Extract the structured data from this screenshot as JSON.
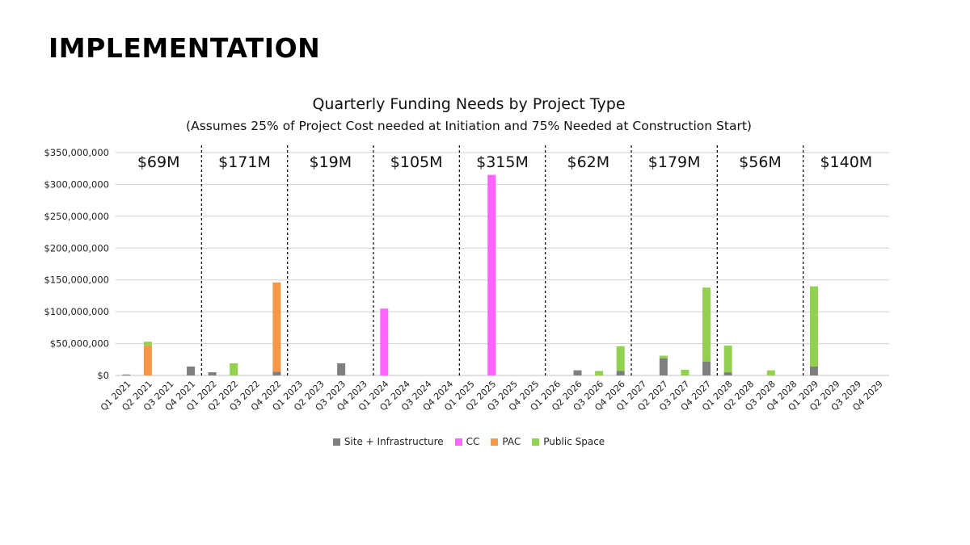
{
  "slide": {
    "title": "IMPLEMENTATION"
  },
  "colors": {
    "site": "#7f7f7f",
    "cc": "#ff66ff",
    "pac": "#f79646",
    "public": "#92d050"
  },
  "chart_data": {
    "type": "bar",
    "stacked": true,
    "title": "Quarterly Funding Needs by Project Type",
    "subtitle": "(Assumes 25% of Project Cost needed at Initiation and 75% Needed at Construction Start)",
    "ylim": [
      0,
      350000000
    ],
    "yticks": [
      "$0",
      "$50,000,000",
      "$100,000,000",
      "$150,000,000",
      "$200,000,000",
      "$250,000,000",
      "$300,000,000",
      "$350,000,000"
    ],
    "grid": true,
    "legend_position": "bottom",
    "categories": [
      "Q1 2021",
      "Q2 2021",
      "Q3 2021",
      "Q4 2021",
      "Q1 2022",
      "Q2 2022",
      "Q3 2022",
      "Q4 2022",
      "Q1 2023",
      "Q2 2023",
      "Q3 2023",
      "Q4 2023",
      "Q1 2024",
      "Q2 2024",
      "Q3 2024",
      "Q4 2024",
      "Q1 2025",
      "Q2 2025",
      "Q3 2025",
      "Q4 2025",
      "Q1 2026",
      "Q2 2026",
      "Q3 2026",
      "Q4 2026",
      "Q1 2027",
      "Q2 2027",
      "Q3 2027",
      "Q4 2027",
      "Q1 2028",
      "Q2 2028",
      "Q3 2028",
      "Q4 2028",
      "Q1 2029",
      "Q2 2029",
      "Q3 2029",
      "Q4 2029"
    ],
    "series": [
      {
        "name": "Site + Infrastructure",
        "color": "#7f7f7f",
        "values": [
          1500000,
          0,
          0,
          14000000,
          5000000,
          0,
          0,
          6000000,
          0,
          0,
          19000000,
          0,
          0,
          0,
          0,
          0,
          0,
          0,
          0,
          0,
          0,
          8000000,
          0,
          7000000,
          0,
          27000000,
          0,
          22000000,
          5000000,
          0,
          0,
          0,
          14000000,
          0,
          0,
          0
        ]
      },
      {
        "name": "CC",
        "color": "#ff66ff",
        "values": [
          0,
          0,
          0,
          0,
          0,
          0,
          0,
          0,
          0,
          0,
          0,
          0,
          105000000,
          0,
          0,
          0,
          0,
          315000000,
          0,
          0,
          0,
          0,
          0,
          0,
          0,
          0,
          0,
          0,
          0,
          0,
          0,
          0,
          0,
          0,
          0,
          0
        ]
      },
      {
        "name": "PAC",
        "color": "#f79646",
        "values": [
          0,
          47000000,
          0,
          0,
          0,
          0,
          0,
          140000000,
          0,
          0,
          0,
          0,
          0,
          0,
          0,
          0,
          0,
          0,
          0,
          0,
          0,
          0,
          0,
          0,
          0,
          0,
          0,
          0,
          0,
          0,
          0,
          0,
          0,
          0,
          0,
          0
        ]
      },
      {
        "name": "Public Space",
        "color": "#92d050",
        "values": [
          0,
          6000000,
          0,
          0,
          0,
          19000000,
          0,
          0,
          0,
          0,
          0,
          0,
          0,
          0,
          0,
          0,
          0,
          0,
          0,
          0,
          0,
          0,
          7000000,
          39000000,
          0,
          4000000,
          9000000,
          116000000,
          42000000,
          0,
          8000000,
          0,
          126000000,
          0,
          0,
          0
        ]
      }
    ],
    "period_totals": [
      {
        "label": "$69M",
        "from_index": 0,
        "to_index": 3
      },
      {
        "label": "$171M",
        "from_index": 4,
        "to_index": 7
      },
      {
        "label": "$19M",
        "from_index": 8,
        "to_index": 11
      },
      {
        "label": "$105M",
        "from_index": 12,
        "to_index": 15
      },
      {
        "label": "$315M",
        "from_index": 16,
        "to_index": 19
      },
      {
        "label": "$62M",
        "from_index": 20,
        "to_index": 23
      },
      {
        "label": "$179M",
        "from_index": 24,
        "to_index": 27
      },
      {
        "label": "$56M",
        "from_index": 28,
        "to_index": 31
      },
      {
        "label": "$140M",
        "from_index": 32,
        "to_index": 35
      }
    ],
    "divider_after_indices": [
      3,
      7,
      11,
      15,
      19,
      23,
      27,
      31
    ]
  }
}
